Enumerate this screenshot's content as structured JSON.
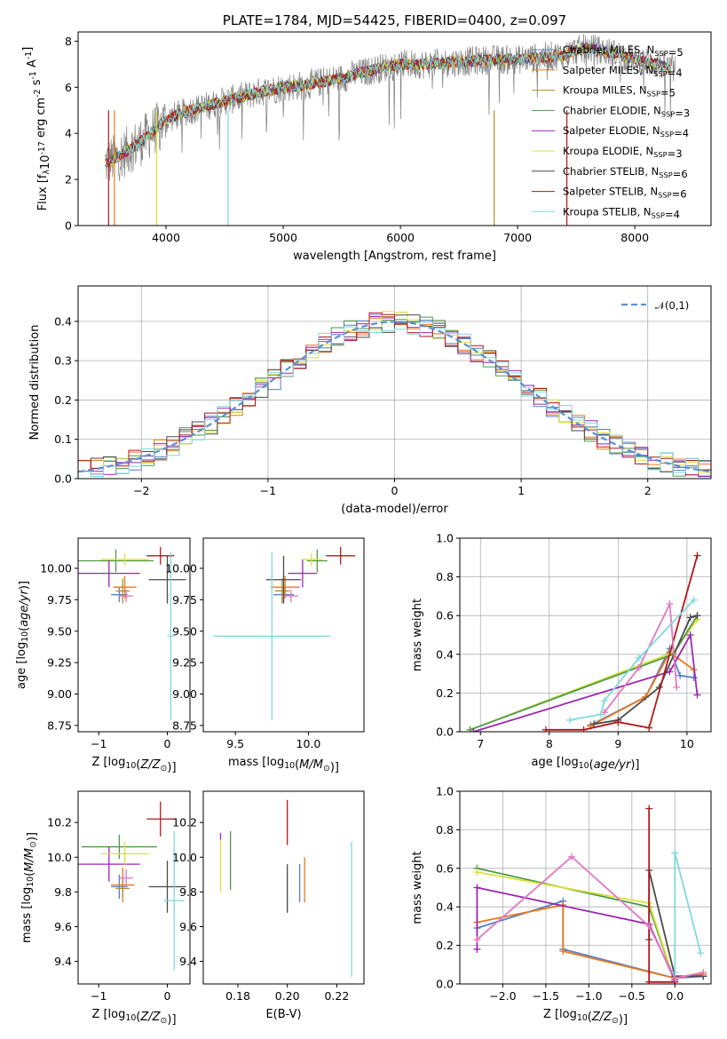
{
  "chart_data": [
    {
      "panel": "spectrum",
      "type": "line",
      "title": "PLATE=1784, MJD=54425, FIBERID=0400, z=0.097",
      "xlabel": "wavelength [Angstrom, rest frame]",
      "ylabel": "Flux [f$_\\lambda$10$^{-17}$ erg cm$^{-2}$ s$^{-1}$ A$^{-1}$]",
      "xlim": [
        3250,
        8650
      ],
      "ylim": [
        0,
        8.4
      ],
      "xticks": [
        4000,
        5000,
        6000,
        7000,
        8000
      ],
      "yticks": [
        0,
        2,
        4,
        6,
        8
      ],
      "grid": false,
      "legend_position": "right",
      "series": [
        {
          "name": "Chabrier MILES, N$_{SSP}$=5",
          "color": "#5b7fcb"
        },
        {
          "name": "Salpeter MILES, N$_{SSP}$=4",
          "color": "#e8781d"
        },
        {
          "name": "Kroupa MILES, N$_{SSP}$=5",
          "color": "#b08e2b"
        },
        {
          "name": "Chabrier ELODIE, N$_{SSP}$=3",
          "color": "#4e9a46"
        },
        {
          "name": "Salpeter ELODIE, N$_{SSP}$=4",
          "color": "#9b27b0"
        },
        {
          "name": "Kroupa ELODIE, N$_{SSP}$=3",
          "color": "#d9e23a"
        },
        {
          "name": "Chabrier STELIB, N$_{SSP}$=6",
          "color": "#4a4a4a"
        },
        {
          "name": "Salpeter STELIB, N$_{SSP}$=6",
          "color": "#b3161a"
        },
        {
          "name": "Kroupa STELIB, N$_{SSP}$=4",
          "color": "#7fd9dc"
        }
      ],
      "continuum": {
        "x": [
          3480,
          3600,
          3800,
          4000,
          4200,
          4500,
          4800,
          5000,
          5200,
          5500,
          5800,
          6000,
          6200,
          6500,
          6800,
          7000,
          7200,
          7400,
          7500,
          7600,
          7800,
          8000,
          8200,
          8300
        ],
        "y": [
          2.7,
          3.0,
          3.7,
          4.6,
          5.0,
          5.4,
          5.8,
          6.0,
          6.1,
          6.4,
          6.8,
          7.0,
          7.0,
          7.1,
          7.2,
          7.2,
          7.3,
          7.4,
          7.6,
          7.7,
          7.5,
          7.2,
          7.0,
          6.8
        ]
      }
    },
    {
      "panel": "residuals",
      "type": "line",
      "xlabel": "(data-model)/error",
      "ylabel": "Normed distribution",
      "xlim": [
        -2.5,
        2.5
      ],
      "ylim": [
        0,
        0.49
      ],
      "xticks": [
        -2,
        -1,
        0,
        1,
        2
      ],
      "yticks": [
        0,
        0.1,
        0.2,
        0.3,
        0.4
      ],
      "grid": true,
      "legend_position": "top-right",
      "reference": {
        "name": "$\\mathcal{N}(0,1)$",
        "color": "#5b8fd6"
      }
    },
    {
      "panel": "age-vs-Z",
      "type": "scatter",
      "xlabel": "Z [log$_{10}$($Z/Z_\\odot$)]",
      "ylabel": "age  [log$_{10}$($age/yr$)]",
      "xlim": [
        -1.3,
        0.33
      ],
      "ylim": [
        8.7,
        10.24
      ],
      "xticks": [
        -1,
        0
      ],
      "yticks": [
        8.75,
        9.0,
        9.25,
        9.5,
        9.75,
        10.0
      ],
      "points": [
        {
          "color": "#5b7fcb",
          "x": -0.7,
          "y": 9.79,
          "xerr": 0.12,
          "yerr": 0.06
        },
        {
          "color": "#e8781d",
          "x": -0.62,
          "y": 9.85,
          "xerr": 0.17,
          "yerr": 0.09
        },
        {
          "color": "#b08e2b",
          "x": -0.65,
          "y": 9.82,
          "xerr": 0.1,
          "yerr": 0.1
        },
        {
          "color": "#4e9a46",
          "x": -0.75,
          "y": 10.06,
          "xerr": 0.55,
          "yerr": 0.09
        },
        {
          "color": "#9b27b0",
          "x": -0.85,
          "y": 9.96,
          "xerr": 0.45,
          "yerr": 0.11
        },
        {
          "color": "#d9e23a",
          "x": -0.62,
          "y": 10.07,
          "xerr": 0.35,
          "yerr": 0.05
        },
        {
          "color": "#4a4a4a",
          "x": 0.0,
          "y": 9.91,
          "xerr": 0.27,
          "yerr": 0.19
        },
        {
          "color": "#b3161a",
          "x": -0.1,
          "y": 10.1,
          "xerr": 0.2,
          "yerr": 0.07
        },
        {
          "color": "#e377c2",
          "x": -0.6,
          "y": 9.78,
          "xerr": 0.1,
          "yerr": 0.05
        },
        {
          "color": "#7fd9dc",
          "x": 0.05,
          "y": 9.46,
          "xerr": 0.05,
          "yerr": 0.67
        }
      ]
    },
    {
      "panel": "age-vs-mass",
      "type": "scatter",
      "xlabel": "mass [log$_{10}$($M/M_\\odot$)]",
      "ylabel": "",
      "xlim": [
        9.28,
        10.38
      ],
      "ylim": [
        8.7,
        10.24
      ],
      "xticks": [
        9.5,
        10.0
      ],
      "yticks": [
        8.75,
        9.0,
        9.25,
        9.5,
        9.75,
        10.0
      ],
      "points": [
        {
          "color": "#5b7fcb",
          "x": 9.83,
          "y": 9.79,
          "xerr": 0.07,
          "yerr": 0.06
        },
        {
          "color": "#e8781d",
          "x": 9.84,
          "y": 9.85,
          "xerr": 0.1,
          "yerr": 0.09
        },
        {
          "color": "#b08e2b",
          "x": 9.82,
          "y": 9.82,
          "xerr": 0.05,
          "yerr": 0.1
        },
        {
          "color": "#4e9a46",
          "x": 10.06,
          "y": 10.06,
          "xerr": 0.07,
          "yerr": 0.09
        },
        {
          "color": "#9b27b0",
          "x": 9.96,
          "y": 9.96,
          "xerr": 0.1,
          "yerr": 0.11
        },
        {
          "color": "#d9e23a",
          "x": 10.02,
          "y": 10.07,
          "xerr": 0.07,
          "yerr": 0.05
        },
        {
          "color": "#4a4a4a",
          "x": 9.83,
          "y": 9.91,
          "xerr": 0.12,
          "yerr": 0.19
        },
        {
          "color": "#b3161a",
          "x": 10.22,
          "y": 10.1,
          "xerr": 0.1,
          "yerr": 0.07
        },
        {
          "color": "#e377c2",
          "x": 9.88,
          "y": 9.78,
          "xerr": 0.05,
          "yerr": 0.05
        },
        {
          "color": "#7fd9dc",
          "x": 9.75,
          "y": 9.46,
          "xerr": 0.4,
          "yerr": 0.67
        }
      ]
    },
    {
      "panel": "mass-weight-vs-age",
      "type": "line",
      "xlabel": "age  [log$_{10}$($age/yr$)]",
      "ylabel": "mass weight",
      "xlim": [
        6.7,
        10.35
      ],
      "ylim": [
        0,
        1.0
      ],
      "xticks": [
        7,
        8,
        9,
        10
      ],
      "yticks": [
        0.0,
        0.2,
        0.4,
        0.6,
        0.8,
        1.0
      ],
      "grid": true,
      "series": [
        {
          "color": "#5b7fcb",
          "x": [
            8.6,
            9.4,
            9.75,
            9.9,
            10.1
          ],
          "y": [
            0.035,
            0.18,
            0.43,
            0.29,
            0.28
          ]
        },
        {
          "color": "#e8781d",
          "x": [
            8.6,
            9.4,
            9.75,
            10.1
          ],
          "y": [
            0.03,
            0.18,
            0.41,
            0.32
          ]
        },
        {
          "color": "#d9e23a",
          "x": [
            6.85,
            9.8,
            10.15
          ],
          "y": [
            0.01,
            0.41,
            0.58
          ]
        },
        {
          "color": "#4e9a46",
          "x": [
            6.85,
            9.8,
            10.15
          ],
          "y": [
            0.01,
            0.4,
            0.6
          ]
        },
        {
          "color": "#9b27b0",
          "x": [
            6.9,
            9.75,
            10.05,
            10.15
          ],
          "y": [
            0.0,
            0.31,
            0.5,
            0.19
          ]
        },
        {
          "color": "#4a4a4a",
          "x": [
            8.65,
            9.0,
            9.6,
            10.05,
            10.15
          ],
          "y": [
            0.04,
            0.06,
            0.23,
            0.59,
            0.6
          ]
        },
        {
          "color": "#b3161a",
          "x": [
            7.95,
            8.5,
            9.0,
            9.45,
            10.15
          ],
          "y": [
            0.01,
            0.01,
            0.05,
            0.02,
            0.91
          ]
        },
        {
          "color": "#e377c2",
          "x": [
            8.8,
            9.3,
            9.75,
            9.85
          ],
          "y": [
            0.1,
            0.33,
            0.66,
            0.23
          ]
        },
        {
          "color": "#7fd9dc",
          "x": [
            8.3,
            8.75,
            8.8,
            9.3,
            10.1
          ],
          "y": [
            0.06,
            0.09,
            0.16,
            0.38,
            0.68
          ]
        }
      ]
    },
    {
      "panel": "mass-vs-Z",
      "type": "scatter",
      "xlabel": "Z [log$_{10}$($Z/Z_\\odot$)]",
      "ylabel": "mass [log$_{10}$($M/M_\\odot$)]",
      "xlim": [
        -1.3,
        0.33
      ],
      "ylim": [
        9.27,
        10.38
      ],
      "xticks": [
        -1,
        0
      ],
      "yticks": [
        9.4,
        9.6,
        9.8,
        10.0,
        10.2
      ],
      "points": [
        {
          "color": "#5b7fcb",
          "x": -0.7,
          "y": 9.83,
          "xerr": 0.12,
          "yerr": 0.07
        },
        {
          "color": "#e8781d",
          "x": -0.65,
          "y": 9.84,
          "xerr": 0.17,
          "yerr": 0.1
        },
        {
          "color": "#b08e2b",
          "x": -0.65,
          "y": 9.82,
          "xerr": 0.1,
          "yerr": 0.05
        },
        {
          "color": "#4e9a46",
          "x": -0.7,
          "y": 10.06,
          "xerr": 0.55,
          "yerr": 0.07
        },
        {
          "color": "#9b27b0",
          "x": -0.85,
          "y": 9.96,
          "xerr": 0.45,
          "yerr": 0.1
        },
        {
          "color": "#d9e23a",
          "x": -0.62,
          "y": 10.02,
          "xerr": 0.35,
          "yerr": 0.07
        },
        {
          "color": "#4a4a4a",
          "x": 0.0,
          "y": 9.83,
          "xerr": 0.27,
          "yerr": 0.15
        },
        {
          "color": "#b3161a",
          "x": -0.1,
          "y": 10.22,
          "xerr": 0.2,
          "yerr": 0.1
        },
        {
          "color": "#e377c2",
          "x": -0.6,
          "y": 9.88,
          "xerr": 0.1,
          "yerr": 0.05
        },
        {
          "color": "#7fd9dc",
          "x": 0.1,
          "y": 9.75,
          "xerr": 0.15,
          "yerr": 0.4
        }
      ]
    },
    {
      "panel": "mass-vs-EBV",
      "type": "scatter",
      "xlabel": "E(B-V)",
      "ylabel": "",
      "xlim": [
        0.166,
        0.231
      ],
      "ylim": [
        9.27,
        10.38
      ],
      "xticks": [
        0.18,
        0.2,
        0.22
      ],
      "yticks": [
        9.4,
        9.6,
        9.8,
        10.0,
        10.2
      ],
      "points": [
        {
          "color": "#9b27b0",
          "x": 0.173,
          "y": 10.12,
          "xerr": 0.0,
          "yerr": 0.02
        },
        {
          "color": "#d9e23a",
          "x": 0.173,
          "y": 9.95,
          "xerr": 0.0,
          "yerr": 0.15
        },
        {
          "color": "#4e9a46",
          "x": 0.177,
          "y": 9.98,
          "xerr": 0.0,
          "yerr": 0.17
        },
        {
          "color": "#b3161a",
          "x": 0.2,
          "y": 10.2,
          "xerr": 0.0,
          "yerr": 0.13
        },
        {
          "color": "#4a4a4a",
          "x": 0.2,
          "y": 9.82,
          "xerr": 0.0,
          "yerr": 0.14
        },
        {
          "color": "#5b7fcb",
          "x": 0.205,
          "y": 9.85,
          "xerr": 0.0,
          "yerr": 0.11
        },
        {
          "color": "#e8781d",
          "x": 0.207,
          "y": 9.87,
          "xerr": 0.0,
          "yerr": 0.13
        },
        {
          "color": "#7fd9dc",
          "x": 0.226,
          "y": 9.7,
          "xerr": 0.0,
          "yerr": 0.39
        }
      ]
    },
    {
      "panel": "mass-weight-vs-Z",
      "type": "line",
      "xlabel": "Z [log$_{10}$($Z/Z_\\odot$)]",
      "ylabel": "mass weight",
      "xlim": [
        -2.5,
        0.42
      ],
      "ylim": [
        0,
        1.0
      ],
      "xticks": [
        -2.0,
        -1.5,
        -1.0,
        -0.5,
        0.0
      ],
      "yticks": [
        0.0,
        0.2,
        0.4,
        0.6,
        0.8,
        1.0
      ],
      "grid": true,
      "series": [
        {
          "color": "#5b7fcb",
          "x": [
            -2.3,
            -1.3,
            -1.3,
            0.0,
            0.33
          ],
          "y": [
            0.29,
            0.43,
            0.18,
            0.03,
            0.04
          ]
        },
        {
          "color": "#e8781d",
          "x": [
            -2.3,
            -1.3,
            -1.3,
            0.0,
            0.33
          ],
          "y": [
            0.32,
            0.41,
            0.17,
            0.03,
            0.05
          ]
        },
        {
          "color": "#4e9a46",
          "x": [
            -2.3,
            -0.3,
            0.0
          ],
          "y": [
            0.6,
            0.4,
            0.01
          ]
        },
        {
          "color": "#d9e23a",
          "x": [
            -2.3,
            -0.3,
            0.0
          ],
          "y": [
            0.58,
            0.42,
            0.01
          ]
        },
        {
          "color": "#9b27b0",
          "x": [
            -2.3,
            -2.3,
            -0.3,
            0.0
          ],
          "y": [
            0.18,
            0.5,
            0.31,
            0.02
          ]
        },
        {
          "color": "#4a4a4a",
          "x": [
            -0.3,
            -0.3,
            0.0,
            0.33
          ],
          "y": [
            0.23,
            0.59,
            0.04,
            0.04
          ]
        },
        {
          "color": "#b3161a",
          "x": [
            -0.3,
            -0.3,
            0.0
          ],
          "y": [
            0.91,
            0.01,
            0.01
          ]
        },
        {
          "color": "#e377c2",
          "x": [
            -2.3,
            -1.2,
            -0.3,
            0.0,
            0.33
          ],
          "y": [
            0.23,
            0.66,
            0.3,
            0.03,
            0.06
          ]
        },
        {
          "color": "#7fd9dc",
          "x": [
            0.0,
            0.0,
            0.3
          ],
          "y": [
            0.06,
            0.68,
            0.16
          ]
        }
      ]
    }
  ]
}
